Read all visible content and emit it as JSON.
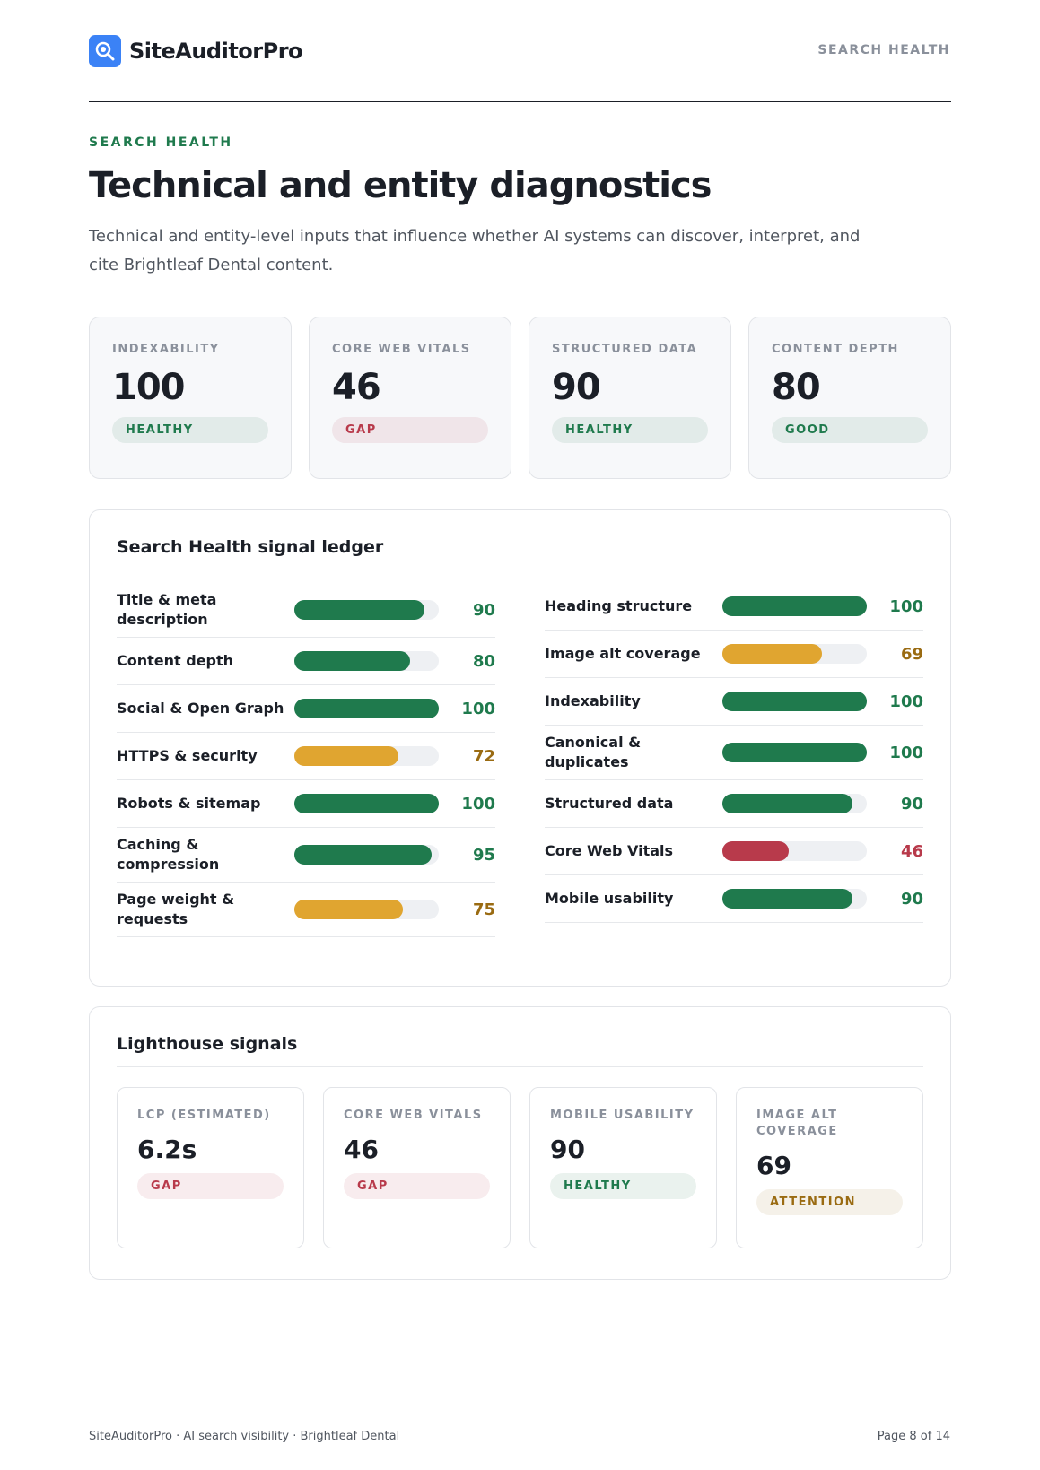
{
  "header": {
    "brand": "SiteAuditorPro",
    "section": "SEARCH HEALTH"
  },
  "eyebrow": "SEARCH HEALTH",
  "title": "Technical and entity diagnostics",
  "intro": "Technical and entity-level inputs that influence whether AI systems can discover, interpret, and cite Brightleaf Dental content.",
  "summary_cards": [
    {
      "label": "INDEXABILITY",
      "value": 100,
      "status": "HEALTHY",
      "color": "#1f7a4d"
    },
    {
      "label": "CORE WEB VITALS",
      "value": 46,
      "status": "GAP",
      "color": "#b83a4b"
    },
    {
      "label": "STRUCTURED DATA",
      "value": 90,
      "status": "HEALTHY",
      "color": "#1f7a4d"
    },
    {
      "label": "CONTENT DEPTH",
      "value": 80,
      "status": "GOOD",
      "color": "#1f7a4d"
    }
  ],
  "ledger": {
    "title": "Search Health signal ledger",
    "xlim": [
      0,
      100
    ],
    "columns": [
      [
        {
          "label": "Title & meta description",
          "value": 90,
          "color": "#1f7a4d"
        },
        {
          "label": "Content depth",
          "value": 80,
          "color": "#1f7a4d"
        },
        {
          "label": "Social & Open Graph",
          "value": 100,
          "color": "#1f7a4d"
        },
        {
          "label": "HTTPS & security",
          "value": 72,
          "color": "#e0a530"
        },
        {
          "label": "Robots & sitemap",
          "value": 100,
          "color": "#1f7a4d"
        },
        {
          "label": "Caching & compression",
          "value": 95,
          "color": "#1f7a4d"
        },
        {
          "label": "Page weight & requests",
          "value": 75,
          "color": "#e0a530"
        }
      ],
      [
        {
          "label": "Heading structure",
          "value": 100,
          "color": "#1f7a4d"
        },
        {
          "label": "Image alt coverage",
          "value": 69,
          "color": "#e0a530"
        },
        {
          "label": "Indexability",
          "value": 100,
          "color": "#1f7a4d"
        },
        {
          "label": "Canonical & duplicates",
          "value": 100,
          "color": "#1f7a4d"
        },
        {
          "label": "Structured data",
          "value": 90,
          "color": "#1f7a4d"
        },
        {
          "label": "Core Web Vitals",
          "value": 46,
          "color": "#b83a4b"
        },
        {
          "label": "Mobile usability",
          "value": 90,
          "color": "#1f7a4d"
        }
      ]
    ]
  },
  "lighthouse": {
    "title": "Lighthouse signals",
    "cards": [
      {
        "label": "LCP (ESTIMATED)",
        "value": "6.2s",
        "status": "GAP",
        "color": "#b83a4b"
      },
      {
        "label": "CORE WEB VITALS",
        "value": 46,
        "status": "GAP",
        "color": "#b83a4b"
      },
      {
        "label": "MOBILE USABILITY",
        "value": 90,
        "status": "HEALTHY",
        "color": "#1f7a4d"
      },
      {
        "label": "IMAGE ALT COVERAGE",
        "value": 69,
        "status": "ATTENTION",
        "color": "#9a6b12"
      }
    ]
  },
  "footer": {
    "left": "SiteAuditorPro · AI search visibility · Brightleaf Dental",
    "right": "Page 8 of 14"
  }
}
